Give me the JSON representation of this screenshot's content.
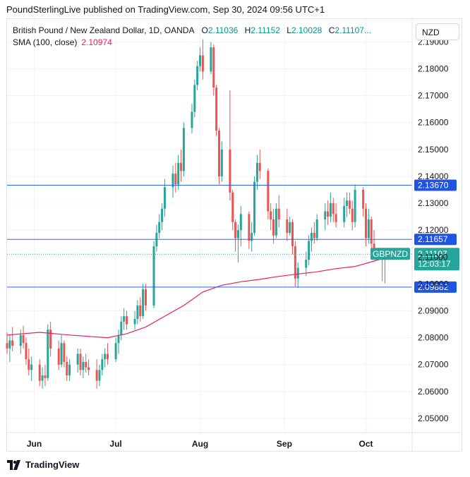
{
  "publisher": "PoundSterlingLive published on TradingView.com, Sep 30, 2024 09:56 UTC+1",
  "legend": {
    "title": "British Pound / New Zealand Dollar, 1D, OANDA",
    "open_label": "O",
    "open": "2.11036",
    "high_label": "H",
    "high": "2.11152",
    "low_label": "L",
    "low": "2.10028",
    "close_label": "C",
    "close": "2.11107...",
    "sma_label": "SMA (100, close)",
    "sma_value": "2.10974"
  },
  "currency_button": "NZD",
  "footer_logo": "TradingView",
  "colors": {
    "up": "#26a69a",
    "down": "#ef5350",
    "sma": "#e91e63",
    "level": "#2962ff",
    "level_label": "#1e53e5",
    "ticker": "#26a69a"
  },
  "chart_data": {
    "type": "candlestick",
    "symbol": "GBPNZD",
    "ylim": [
      2.045,
      2.1985
    ],
    "y_ticks": [
      2.05,
      2.06,
      2.07,
      2.08,
      2.09,
      2.1,
      2.11,
      2.12,
      2.13,
      2.14,
      2.15,
      2.16,
      2.17,
      2.18,
      2.19
    ],
    "y_tick_labels": [
      "2.05000",
      "2.06000",
      "2.07000",
      "2.08000",
      "2.09000",
      "2.10000",
      "2.11000",
      "2.12000",
      "2.13000",
      "2.14000",
      "2.15000",
      "2.16000",
      "2.17000",
      "2.18000",
      "2.19000"
    ],
    "x_labels": [
      {
        "label": "Jun",
        "date": "2024-06-01"
      },
      {
        "label": "Jul",
        "date": "2024-07-01"
      },
      {
        "label": "Aug",
        "date": "2024-08-01"
      },
      {
        "label": "Sep",
        "date": "2024-09-01"
      },
      {
        "label": "Oct",
        "date": "2024-10-01"
      }
    ],
    "x_range": [
      "2024-05-22",
      "2024-10-18"
    ],
    "horizontal_levels": [
      {
        "value": 2.1367,
        "label": "2.13670"
      },
      {
        "value": 2.11657,
        "label": "2.11657"
      },
      {
        "value": 2.09882,
        "label": "2.09882"
      }
    ],
    "last_price": {
      "value": 2.11107,
      "label": "2.11107",
      "countdown": "12:03:17",
      "symbol": "GBPNZD"
    },
    "ohlc": [
      [
        "2024-05-22",
        2.078,
        2.082,
        2.074,
        2.076
      ],
      [
        "2024-05-23",
        2.076,
        2.081,
        2.071,
        2.079
      ],
      [
        "2024-05-24",
        2.079,
        2.084,
        2.075,
        2.077
      ],
      [
        "2024-05-27",
        2.077,
        2.083,
        2.074,
        2.081
      ],
      [
        "2024-05-28",
        2.081,
        2.0845,
        2.076,
        2.078
      ],
      [
        "2024-05-29",
        2.078,
        2.08,
        2.07,
        2.072
      ],
      [
        "2024-05-30",
        2.072,
        2.076,
        2.066,
        2.068
      ],
      [
        "2024-05-31",
        2.068,
        2.073,
        2.064,
        2.07
      ],
      [
        "2024-06-03",
        2.07,
        2.072,
        2.062,
        2.064
      ],
      [
        "2024-06-04",
        2.064,
        2.069,
        2.061,
        2.066
      ],
      [
        "2024-06-05",
        2.066,
        2.07,
        2.062,
        2.065
      ],
      [
        "2024-06-06",
        2.065,
        2.085,
        2.064,
        2.083
      ],
      [
        "2024-06-07",
        2.083,
        2.086,
        2.073,
        2.076
      ],
      [
        "2024-06-10",
        2.076,
        2.079,
        2.068,
        2.07
      ],
      [
        "2024-06-11",
        2.07,
        2.081,
        2.069,
        2.078
      ],
      [
        "2024-06-12",
        2.078,
        2.079,
        2.069,
        2.071
      ],
      [
        "2024-06-13",
        2.071,
        2.073,
        2.064,
        2.066
      ],
      [
        "2024-06-14",
        2.066,
        2.072,
        2.064,
        2.07
      ],
      [
        "2024-06-17",
        2.07,
        2.076,
        2.067,
        2.074
      ],
      [
        "2024-06-18",
        2.074,
        2.076,
        2.066,
        2.068
      ],
      [
        "2024-06-19",
        2.068,
        2.073,
        2.065,
        2.071
      ],
      [
        "2024-06-20",
        2.071,
        2.074,
        2.067,
        2.069
      ],
      [
        "2024-06-21",
        2.069,
        2.072,
        2.066,
        2.068
      ],
      [
        "2024-06-24",
        2.068,
        2.072,
        2.061,
        2.064
      ],
      [
        "2024-06-25",
        2.064,
        2.07,
        2.062,
        2.068
      ],
      [
        "2024-06-26",
        2.068,
        2.074,
        2.066,
        2.072
      ],
      [
        "2024-06-27",
        2.072,
        2.076,
        2.069,
        2.074
      ],
      [
        "2024-06-28",
        2.074,
        2.078,
        2.07,
        2.072
      ],
      [
        "2024-07-01",
        2.072,
        2.08,
        2.071,
        2.078
      ],
      [
        "2024-07-02",
        2.078,
        2.083,
        2.074,
        2.081
      ],
      [
        "2024-07-03",
        2.081,
        2.088,
        2.079,
        2.086
      ],
      [
        "2024-07-04",
        2.086,
        2.091,
        2.083,
        2.088
      ],
      [
        "2024-07-05",
        2.088,
        2.09,
        2.083,
        2.085
      ],
      [
        "2024-07-08",
        2.085,
        2.09,
        2.083,
        2.087
      ],
      [
        "2024-07-09",
        2.087,
        2.094,
        2.085,
        2.092
      ],
      [
        "2024-07-10",
        2.092,
        2.095,
        2.086,
        2.088
      ],
      [
        "2024-07-11",
        2.088,
        2.1,
        2.087,
        2.098
      ],
      [
        "2024-07-12",
        2.098,
        2.1,
        2.09,
        2.092
      ],
      [
        "2024-07-15",
        2.092,
        2.116,
        2.091,
        2.114
      ],
      [
        "2024-07-16",
        2.114,
        2.122,
        2.112,
        2.119
      ],
      [
        "2024-07-17",
        2.119,
        2.126,
        2.117,
        2.123
      ],
      [
        "2024-07-18",
        2.123,
        2.13,
        2.12,
        2.128
      ],
      [
        "2024-07-19",
        2.128,
        2.139,
        2.125,
        2.136
      ],
      [
        "2024-07-22",
        2.136,
        2.144,
        2.132,
        2.141
      ],
      [
        "2024-07-23",
        2.141,
        2.145,
        2.134,
        2.137
      ],
      [
        "2024-07-24",
        2.137,
        2.148,
        2.135,
        2.145
      ],
      [
        "2024-07-25",
        2.145,
        2.15,
        2.138,
        2.142
      ],
      [
        "2024-07-26",
        2.142,
        2.16,
        2.14,
        2.158
      ],
      [
        "2024-07-29",
        2.158,
        2.167,
        2.156,
        2.164
      ],
      [
        "2024-07-30",
        2.164,
        2.176,
        2.162,
        2.174
      ],
      [
        "2024-07-31",
        2.174,
        2.183,
        2.172,
        2.181
      ],
      [
        "2024-08-01",
        2.181,
        2.188,
        2.179,
        2.185
      ],
      [
        "2024-08-02",
        2.185,
        2.191,
        2.176,
        2.179
      ],
      [
        "2024-08-05",
        2.179,
        2.19,
        2.178,
        2.188
      ],
      [
        "2024-08-06",
        2.188,
        2.189,
        2.17,
        2.173
      ],
      [
        "2024-08-07",
        2.173,
        2.174,
        2.155,
        2.157
      ],
      [
        "2024-08-08",
        2.157,
        2.158,
        2.137,
        2.14
      ],
      [
        "2024-08-09",
        2.14,
        2.153,
        2.138,
        2.15
      ],
      [
        "2024-08-12",
        2.15,
        2.172,
        2.131,
        2.134
      ],
      [
        "2024-08-13",
        2.134,
        2.135,
        2.12,
        2.123
      ],
      [
        "2024-08-14",
        2.123,
        2.124,
        2.112,
        2.117
      ],
      [
        "2024-08-15",
        2.117,
        2.122,
        2.108,
        2.12
      ],
      [
        "2024-08-16",
        2.12,
        2.129,
        2.114,
        2.126
      ],
      [
        "2024-08-19",
        2.126,
        2.127,
        2.113,
        2.116
      ],
      [
        "2024-08-20",
        2.116,
        2.123,
        2.112,
        2.119
      ],
      [
        "2024-08-21",
        2.119,
        2.14,
        2.118,
        2.138
      ],
      [
        "2024-08-22",
        2.138,
        2.148,
        2.135,
        2.145
      ],
      [
        "2024-08-23",
        2.145,
        2.15,
        2.139,
        2.142
      ],
      [
        "2024-08-26",
        2.142,
        2.143,
        2.124,
        2.127
      ],
      [
        "2024-08-27",
        2.127,
        2.13,
        2.12,
        2.124
      ],
      [
        "2024-08-28",
        2.124,
        2.128,
        2.115,
        2.118
      ],
      [
        "2024-08-29",
        2.118,
        2.13,
        2.117,
        2.128
      ],
      [
        "2024-08-30",
        2.128,
        2.133,
        2.121,
        2.124
      ],
      [
        "2024-09-02",
        2.124,
        2.128,
        2.116,
        2.119
      ],
      [
        "2024-09-03",
        2.119,
        2.125,
        2.118,
        2.123
      ],
      [
        "2024-09-04",
        2.123,
        2.124,
        2.111,
        2.114
      ],
      [
        "2024-09-05",
        2.114,
        2.116,
        2.099,
        2.102
      ],
      [
        "2024-09-06",
        2.102,
        2.108,
        2.0985,
        2.106
      ],
      [
        "2024-09-09",
        2.106,
        2.112,
        2.103,
        2.109
      ],
      [
        "2024-09-10",
        2.109,
        2.118,
        2.107,
        2.116
      ],
      [
        "2024-09-11",
        2.116,
        2.121,
        2.112,
        2.119
      ],
      [
        "2024-09-12",
        2.119,
        2.123,
        2.115,
        2.117
      ],
      [
        "2024-09-13",
        2.117,
        2.126,
        2.116,
        2.124
      ],
      [
        "2024-09-16",
        2.124,
        2.13,
        2.12,
        2.127
      ],
      [
        "2024-09-17",
        2.127,
        2.131,
        2.122,
        2.125
      ],
      [
        "2024-09-18",
        2.125,
        2.134,
        2.123,
        2.13
      ],
      [
        "2024-09-19",
        2.13,
        2.132,
        2.123,
        2.126
      ],
      [
        "2024-09-20",
        2.126,
        2.13,
        2.121,
        2.123
      ],
      [
        "2024-09-23",
        2.123,
        2.132,
        2.121,
        2.129
      ],
      [
        "2024-09-24",
        2.129,
        2.134,
        2.125,
        2.131
      ],
      [
        "2024-09-25",
        2.131,
        2.134,
        2.126,
        2.128
      ],
      [
        "2024-09-26",
        2.128,
        2.131,
        2.12,
        2.123
      ],
      [
        "2024-09-27",
        2.123,
        2.137,
        2.121,
        2.135
      ],
      [
        "2024-09-30",
        2.135,
        2.136,
        2.125,
        2.128
      ],
      [
        "2024-10-01",
        2.128,
        2.13,
        2.114,
        2.117
      ],
      [
        "2024-10-02",
        2.117,
        2.128,
        2.115,
        2.124
      ],
      [
        "2024-10-03",
        2.124,
        2.125,
        2.112,
        2.115
      ],
      [
        "2024-10-04",
        2.115,
        2.12,
        2.11,
        2.112
      ],
      [
        "2024-10-07",
        2.112,
        2.1135,
        2.101,
        2.1104
      ],
      [
        "2024-10-08",
        2.1104,
        2.1115,
        2.1003,
        2.1111
      ]
    ],
    "sma": [
      [
        "2024-05-22",
        2.081
      ],
      [
        "2024-06-03",
        2.082
      ],
      [
        "2024-06-14",
        2.081
      ],
      [
        "2024-06-28",
        2.08
      ],
      [
        "2024-07-05",
        2.0815
      ],
      [
        "2024-07-12",
        2.084
      ],
      [
        "2024-07-19",
        2.088
      ],
      [
        "2024-07-26",
        2.092
      ],
      [
        "2024-08-02",
        2.097
      ],
      [
        "2024-08-09",
        2.0995
      ],
      [
        "2024-08-16",
        2.1008
      ],
      [
        "2024-08-23",
        2.1017
      ],
      [
        "2024-08-30",
        2.1028
      ],
      [
        "2024-09-06",
        2.1037
      ],
      [
        "2024-09-13",
        2.1045
      ],
      [
        "2024-09-20",
        2.1057
      ],
      [
        "2024-09-27",
        2.1065
      ],
      [
        "2024-10-04",
        2.1085
      ],
      [
        "2024-10-08",
        2.1097
      ]
    ]
  }
}
